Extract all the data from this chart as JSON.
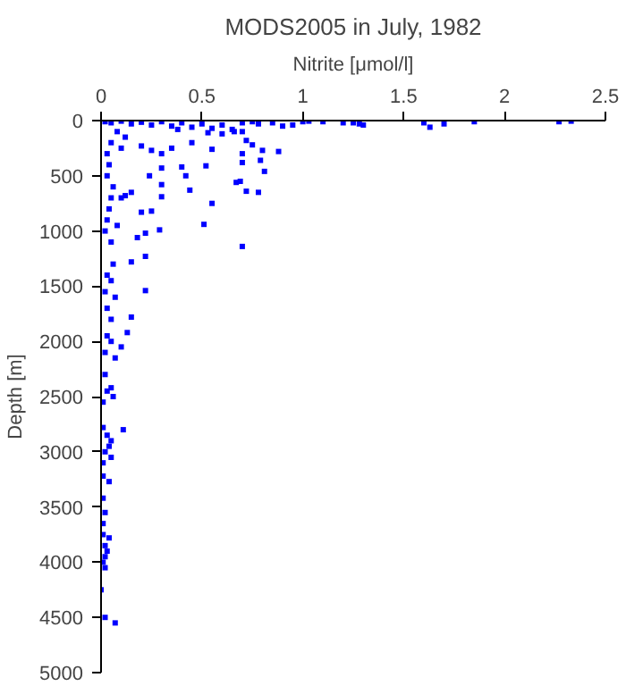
{
  "chart_data": {
    "type": "scatter",
    "title": "MODS2005 in July, 1982",
    "xlabel": "Nitrite [μmol/l]",
    "ylabel": "Depth [m]",
    "xlim": [
      0,
      2.5
    ],
    "xticks": [
      0,
      0.5,
      1,
      1.5,
      2,
      2.5
    ],
    "ylim": [
      5000,
      0
    ],
    "yticks": [
      0,
      500,
      1000,
      1500,
      2000,
      2500,
      3000,
      3500,
      4000,
      4500,
      5000
    ],
    "grid": false,
    "marker": "square",
    "series": [
      {
        "color": "#0000ff",
        "x": [
          0.02,
          0.05,
          0.1,
          0.15,
          0.2,
          0.25,
          0.3,
          0.35,
          0.4,
          0.45,
          0.5,
          0.55,
          0.6,
          0.65,
          0.7,
          0.75,
          0.78,
          0.85,
          0.9,
          0.95,
          1.0,
          1.03,
          1.1,
          1.2,
          1.25,
          1.28,
          1.3,
          1.6,
          1.63,
          1.7,
          1.85,
          2.27,
          2.33,
          0.38,
          0.53,
          0.6,
          0.66,
          0.7,
          0.08,
          0.12,
          0.05,
          0.1,
          0.2,
          0.25,
          0.3,
          0.35,
          0.45,
          0.55,
          0.72,
          0.75,
          0.8,
          0.88,
          0.7,
          0.79,
          0.7,
          0.81,
          0.4,
          0.52,
          0.3,
          0.42,
          0.3,
          0.24,
          0.69,
          0.67,
          0.72,
          0.78,
          0.44,
          0.3,
          0.55,
          0.2,
          0.25,
          0.51,
          0.29,
          0.22,
          0.7,
          0.18,
          0.22,
          0.15,
          0.05,
          0.03,
          0.04,
          0.03,
          0.06,
          0.05,
          0.04,
          0.03,
          0.02,
          0.1,
          0.12,
          0.15,
          0.08,
          0.06,
          0.03,
          0.05,
          0.02,
          0.07,
          0.22,
          0.15,
          0.05,
          0.03,
          0.13,
          0.03,
          0.05,
          0.1,
          0.02,
          0.07,
          0.02,
          0.05,
          0.03,
          0.06,
          0.01,
          0.11,
          0.01,
          0.03,
          0.05,
          0.04,
          0.02,
          0.05,
          0.01,
          0.01,
          0.04,
          0.01,
          0.02,
          0.01,
          0.01,
          0.04,
          0.02,
          0.03,
          0.02,
          0.01,
          0.02,
          0.0,
          0.02,
          0.07
        ],
        "values": [
          10,
          20,
          5,
          30,
          15,
          40,
          10,
          50,
          20,
          60,
          30,
          70,
          40,
          80,
          20,
          10,
          30,
          20,
          50,
          40,
          10,
          5,
          10,
          20,
          20,
          30,
          40,
          20,
          60,
          30,
          10,
          10,
          5,
          80,
          110,
          120,
          100,
          100,
          100,
          150,
          200,
          250,
          230,
          270,
          300,
          250,
          200,
          260,
          180,
          220,
          270,
          280,
          300,
          360,
          380,
          460,
          420,
          410,
          430,
          500,
          580,
          500,
          550,
          560,
          640,
          650,
          630,
          690,
          750,
          830,
          820,
          940,
          990,
          1020,
          1140,
          1060,
          1230,
          1280,
          1100,
          300,
          400,
          500,
          600,
          700,
          800,
          900,
          1000,
          700,
          680,
          650,
          950,
          1300,
          1400,
          1450,
          1550,
          1600,
          1540,
          1780,
          1800,
          1700,
          1920,
          1950,
          2000,
          2050,
          2100,
          2150,
          2300,
          2420,
          2450,
          2500,
          2550,
          2800,
          2780,
          2850,
          2900,
          2950,
          3000,
          3050,
          3100,
          3220,
          3270,
          3420,
          3550,
          3650,
          3750,
          3780,
          3850,
          3900,
          3950,
          4000,
          4050,
          4250,
          4500,
          4550
        ]
      }
    ]
  }
}
